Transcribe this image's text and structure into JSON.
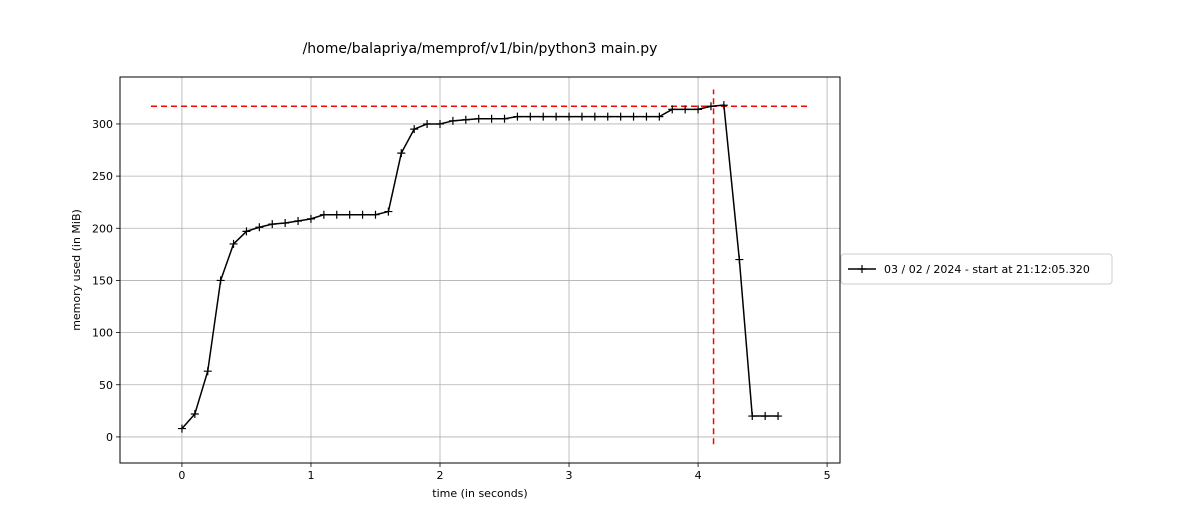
{
  "chart_data": {
    "type": "line",
    "title": "/home/balapriya/memprof/v1/bin/python3 main.py",
    "xlabel": "time (in seconds)",
    "ylabel": "memory used (in MiB)",
    "xlim": [
      -0.48,
      5.1
    ],
    "ylim": [
      -25,
      345
    ],
    "xticks": [
      0,
      1,
      2,
      3,
      4,
      5
    ],
    "yticks": [
      0,
      50,
      100,
      150,
      200,
      250,
      300
    ],
    "grid": true,
    "legend_position": "right",
    "series": [
      {
        "name": "03 / 02 / 2024 - start at 21:12:05.320",
        "color": "#000000",
        "marker": "plus",
        "x": [
          0.0,
          0.1,
          0.2,
          0.3,
          0.4,
          0.5,
          0.6,
          0.7,
          0.8,
          0.9,
          1.0,
          1.1,
          1.2,
          1.3,
          1.4,
          1.5,
          1.6,
          1.7,
          1.8,
          1.9,
          2.0,
          2.1,
          2.2,
          2.3,
          2.4,
          2.5,
          2.6,
          2.7,
          2.8,
          2.9,
          3.0,
          3.1,
          3.2,
          3.3,
          3.4,
          3.5,
          3.6,
          3.7,
          3.8,
          3.9,
          4.0,
          4.1,
          4.2,
          4.32,
          4.42,
          4.52,
          4.62
        ],
        "y": [
          8,
          22,
          63,
          150,
          185,
          197,
          201,
          204,
          205,
          207,
          209,
          213,
          213,
          213,
          213,
          213,
          216,
          272,
          295,
          300,
          300,
          303,
          304,
          305,
          305,
          305,
          307,
          307,
          307,
          307,
          307,
          307,
          307,
          307,
          307,
          307,
          307,
          307,
          314,
          314,
          314,
          317,
          318,
          170,
          20,
          20,
          20
        ]
      }
    ],
    "annotations": [
      {
        "type": "hline",
        "y": 317,
        "x_range": [
          -0.24,
          4.86
        ],
        "color": "#ff0000",
        "style": "dashed"
      },
      {
        "type": "vline",
        "x": 4.12,
        "y_range": [
          -7,
          333
        ],
        "color": "#ff0000",
        "style": "dashed"
      }
    ]
  }
}
